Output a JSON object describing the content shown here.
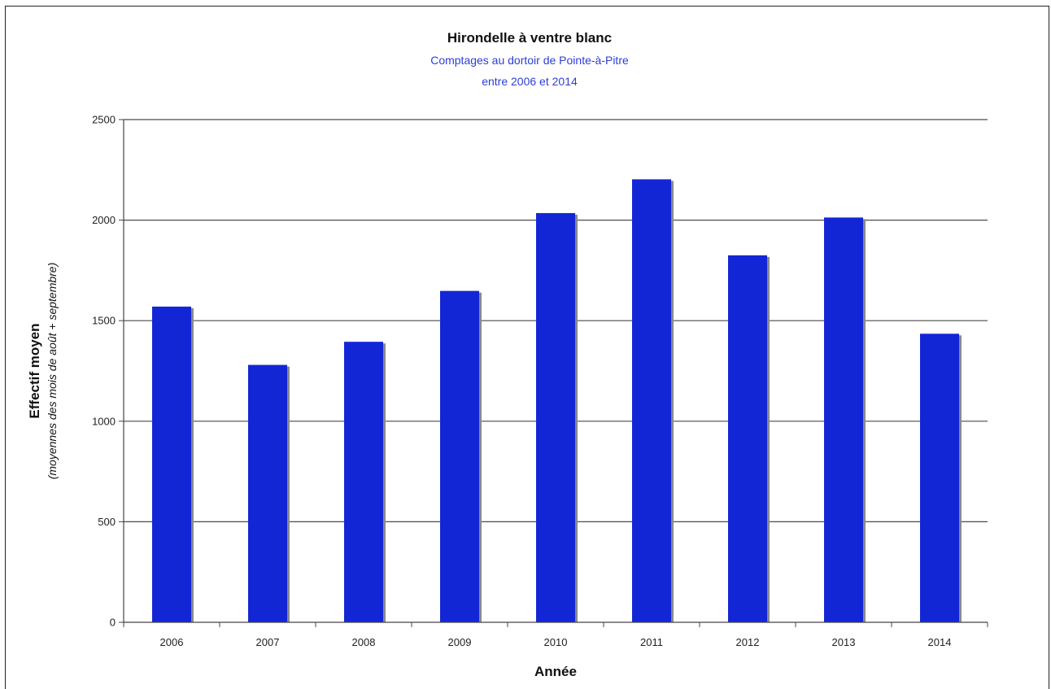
{
  "chart_data": {
    "type": "bar",
    "title": "Hirondelle à ventre blanc",
    "subtitle_lines": [
      "Comptages au dortoir de Pointe-à-Pitre",
      "entre 2006 et 2014"
    ],
    "xlabel": "Année",
    "ylabel": "Effectif moyen",
    "ylabel_sub": "(moyennes des mois de août + septembre)",
    "categories": [
      "2006",
      "2007",
      "2008",
      "2009",
      "2010",
      "2011",
      "2012",
      "2013",
      "2014"
    ],
    "values": [
      1570,
      1280,
      1395,
      1648,
      2035,
      2203,
      1825,
      2013,
      1435
    ],
    "ylim": [
      0,
      2500
    ],
    "yticks": [
      0,
      500,
      1000,
      1500,
      2000,
      2500
    ],
    "grid": true,
    "legend": "none",
    "bar_color": "#1326d6",
    "bar_shadow_color": "#8a8a8a"
  }
}
